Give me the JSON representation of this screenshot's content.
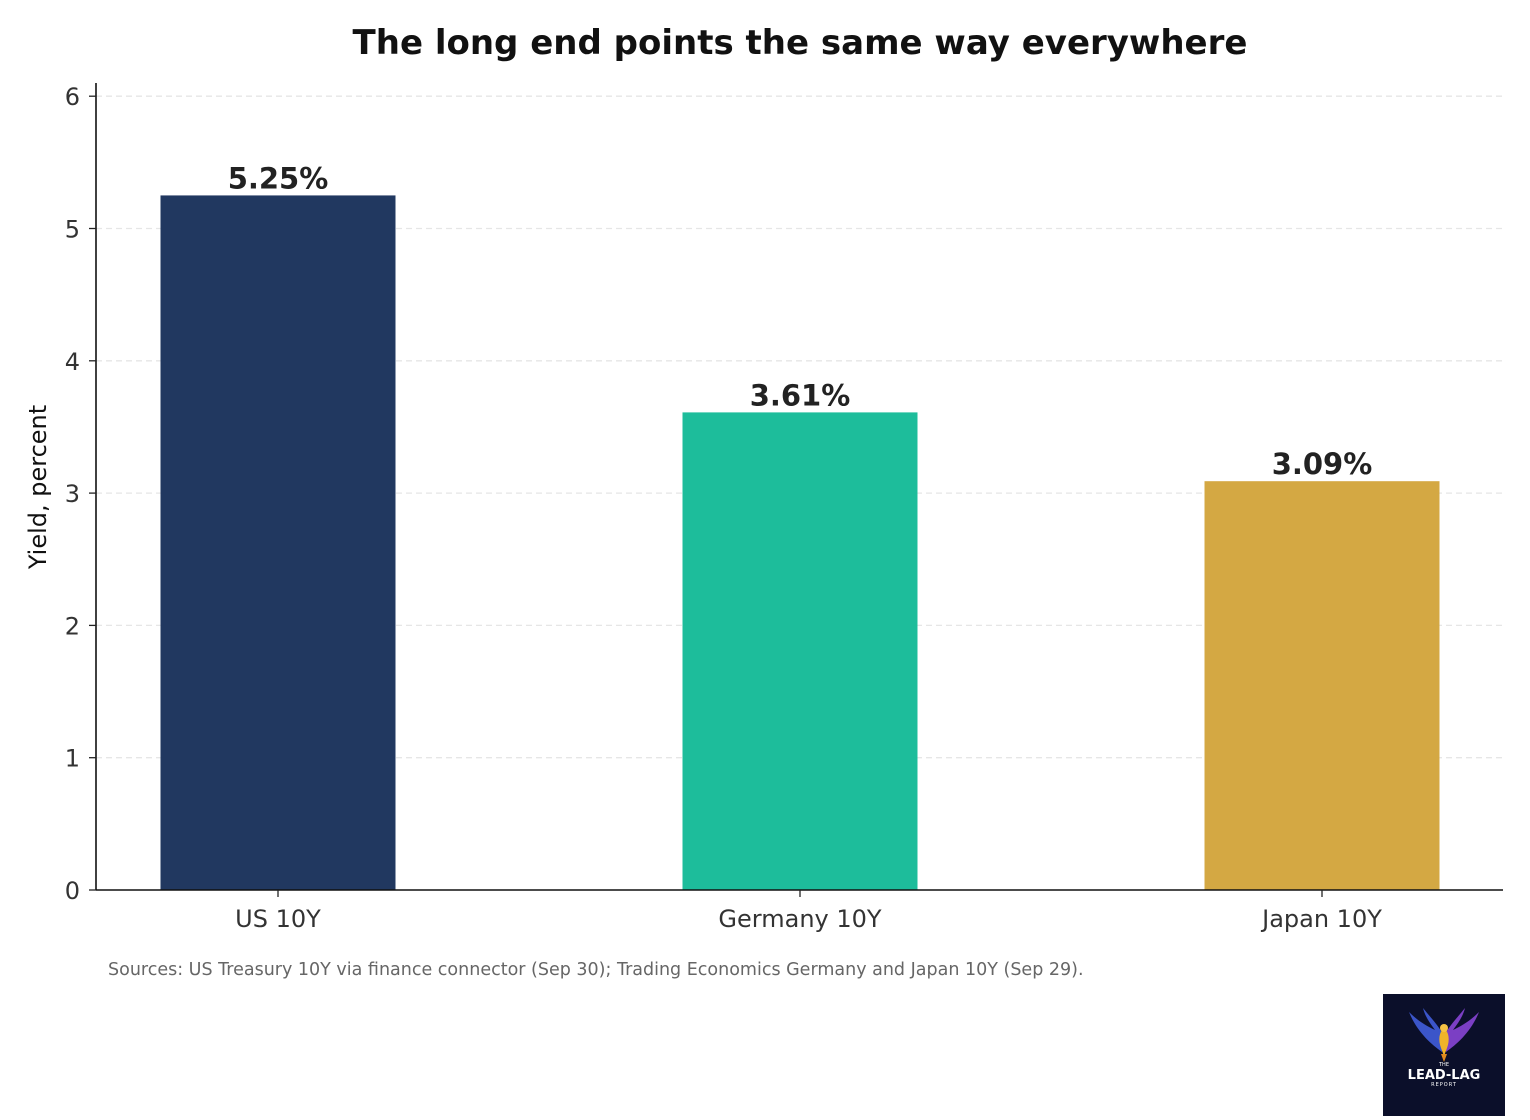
{
  "chart_data": {
    "type": "bar",
    "title": "The long end points the same way everywhere",
    "xlabel": "",
    "ylabel": "Yield, percent",
    "categories": [
      "US 10Y",
      "Germany 10Y",
      "Japan 10Y"
    ],
    "values": [
      5.25,
      3.61,
      3.09
    ],
    "data_labels": [
      "5.25%",
      "3.61%",
      "3.09%"
    ],
    "colors": [
      "#213860",
      "#1dbd9b",
      "#d4a843"
    ],
    "ylim": [
      0,
      6.1
    ],
    "yticks": [
      0,
      1,
      2,
      3,
      4,
      5,
      6
    ],
    "grid": "horizontal dashed",
    "legend": "none"
  },
  "footer": {
    "sources": "Sources: US Treasury 10Y via finance connector (Sep 30); Trading Economics Germany and Japan 10Y (Sep 29)."
  },
  "logo": {
    "icon": "phoenix-icon",
    "small_text": "THE",
    "brand": "LEAD-LAG",
    "sub": "REPORT"
  }
}
